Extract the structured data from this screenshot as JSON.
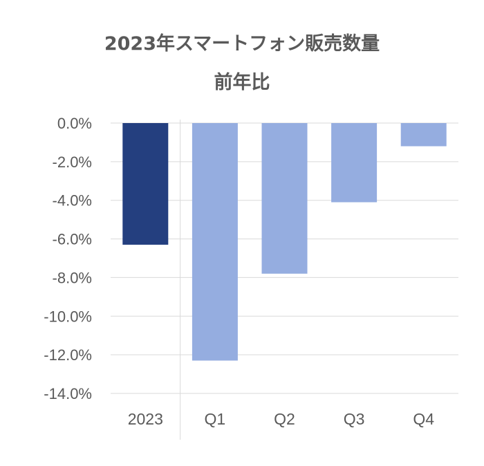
{
  "chart_data": {
    "type": "bar",
    "title": "2023年スマートフォン販売数量",
    "subtitle": "前年比",
    "categories": [
      "2023",
      "Q1",
      "Q2",
      "Q3",
      "Q4"
    ],
    "values": [
      -6.3,
      -12.3,
      -7.8,
      -4.1,
      -1.2
    ],
    "unit": "%",
    "ylim": [
      -14,
      0
    ],
    "yticks": [
      "0.0%",
      "-2.0%",
      "-4.0%",
      "-6.0%",
      "-8.0%",
      "-10.0%",
      "-12.0%",
      "-14.0%"
    ],
    "grid": true,
    "colors": {
      "annual": "#243f7f",
      "quarterly": "#95ade0",
      "grid": "#d9d9d9",
      "text": "#595959"
    }
  }
}
